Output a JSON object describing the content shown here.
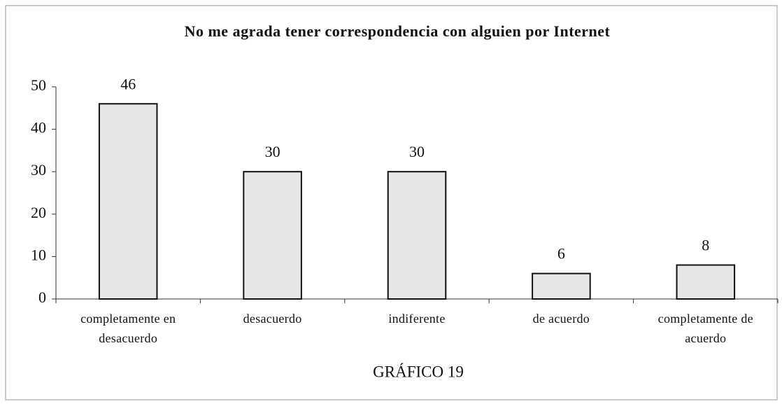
{
  "chart_data": {
    "type": "bar",
    "title": "No me agrada tener correspondencia con alguien por Internet",
    "categories": [
      "completamente en desacuerdo",
      "desacuerdo",
      "indiferente",
      "de acuerdo",
      "completamente de acuerdo"
    ],
    "values": [
      46,
      30,
      30,
      6,
      8
    ],
    "color": "#e6e6e6",
    "ylim": [
      0,
      50
    ],
    "yticks": [
      0,
      10,
      20,
      30,
      40,
      50
    ],
    "grid": false,
    "caption": "GRÁFICO 19"
  }
}
